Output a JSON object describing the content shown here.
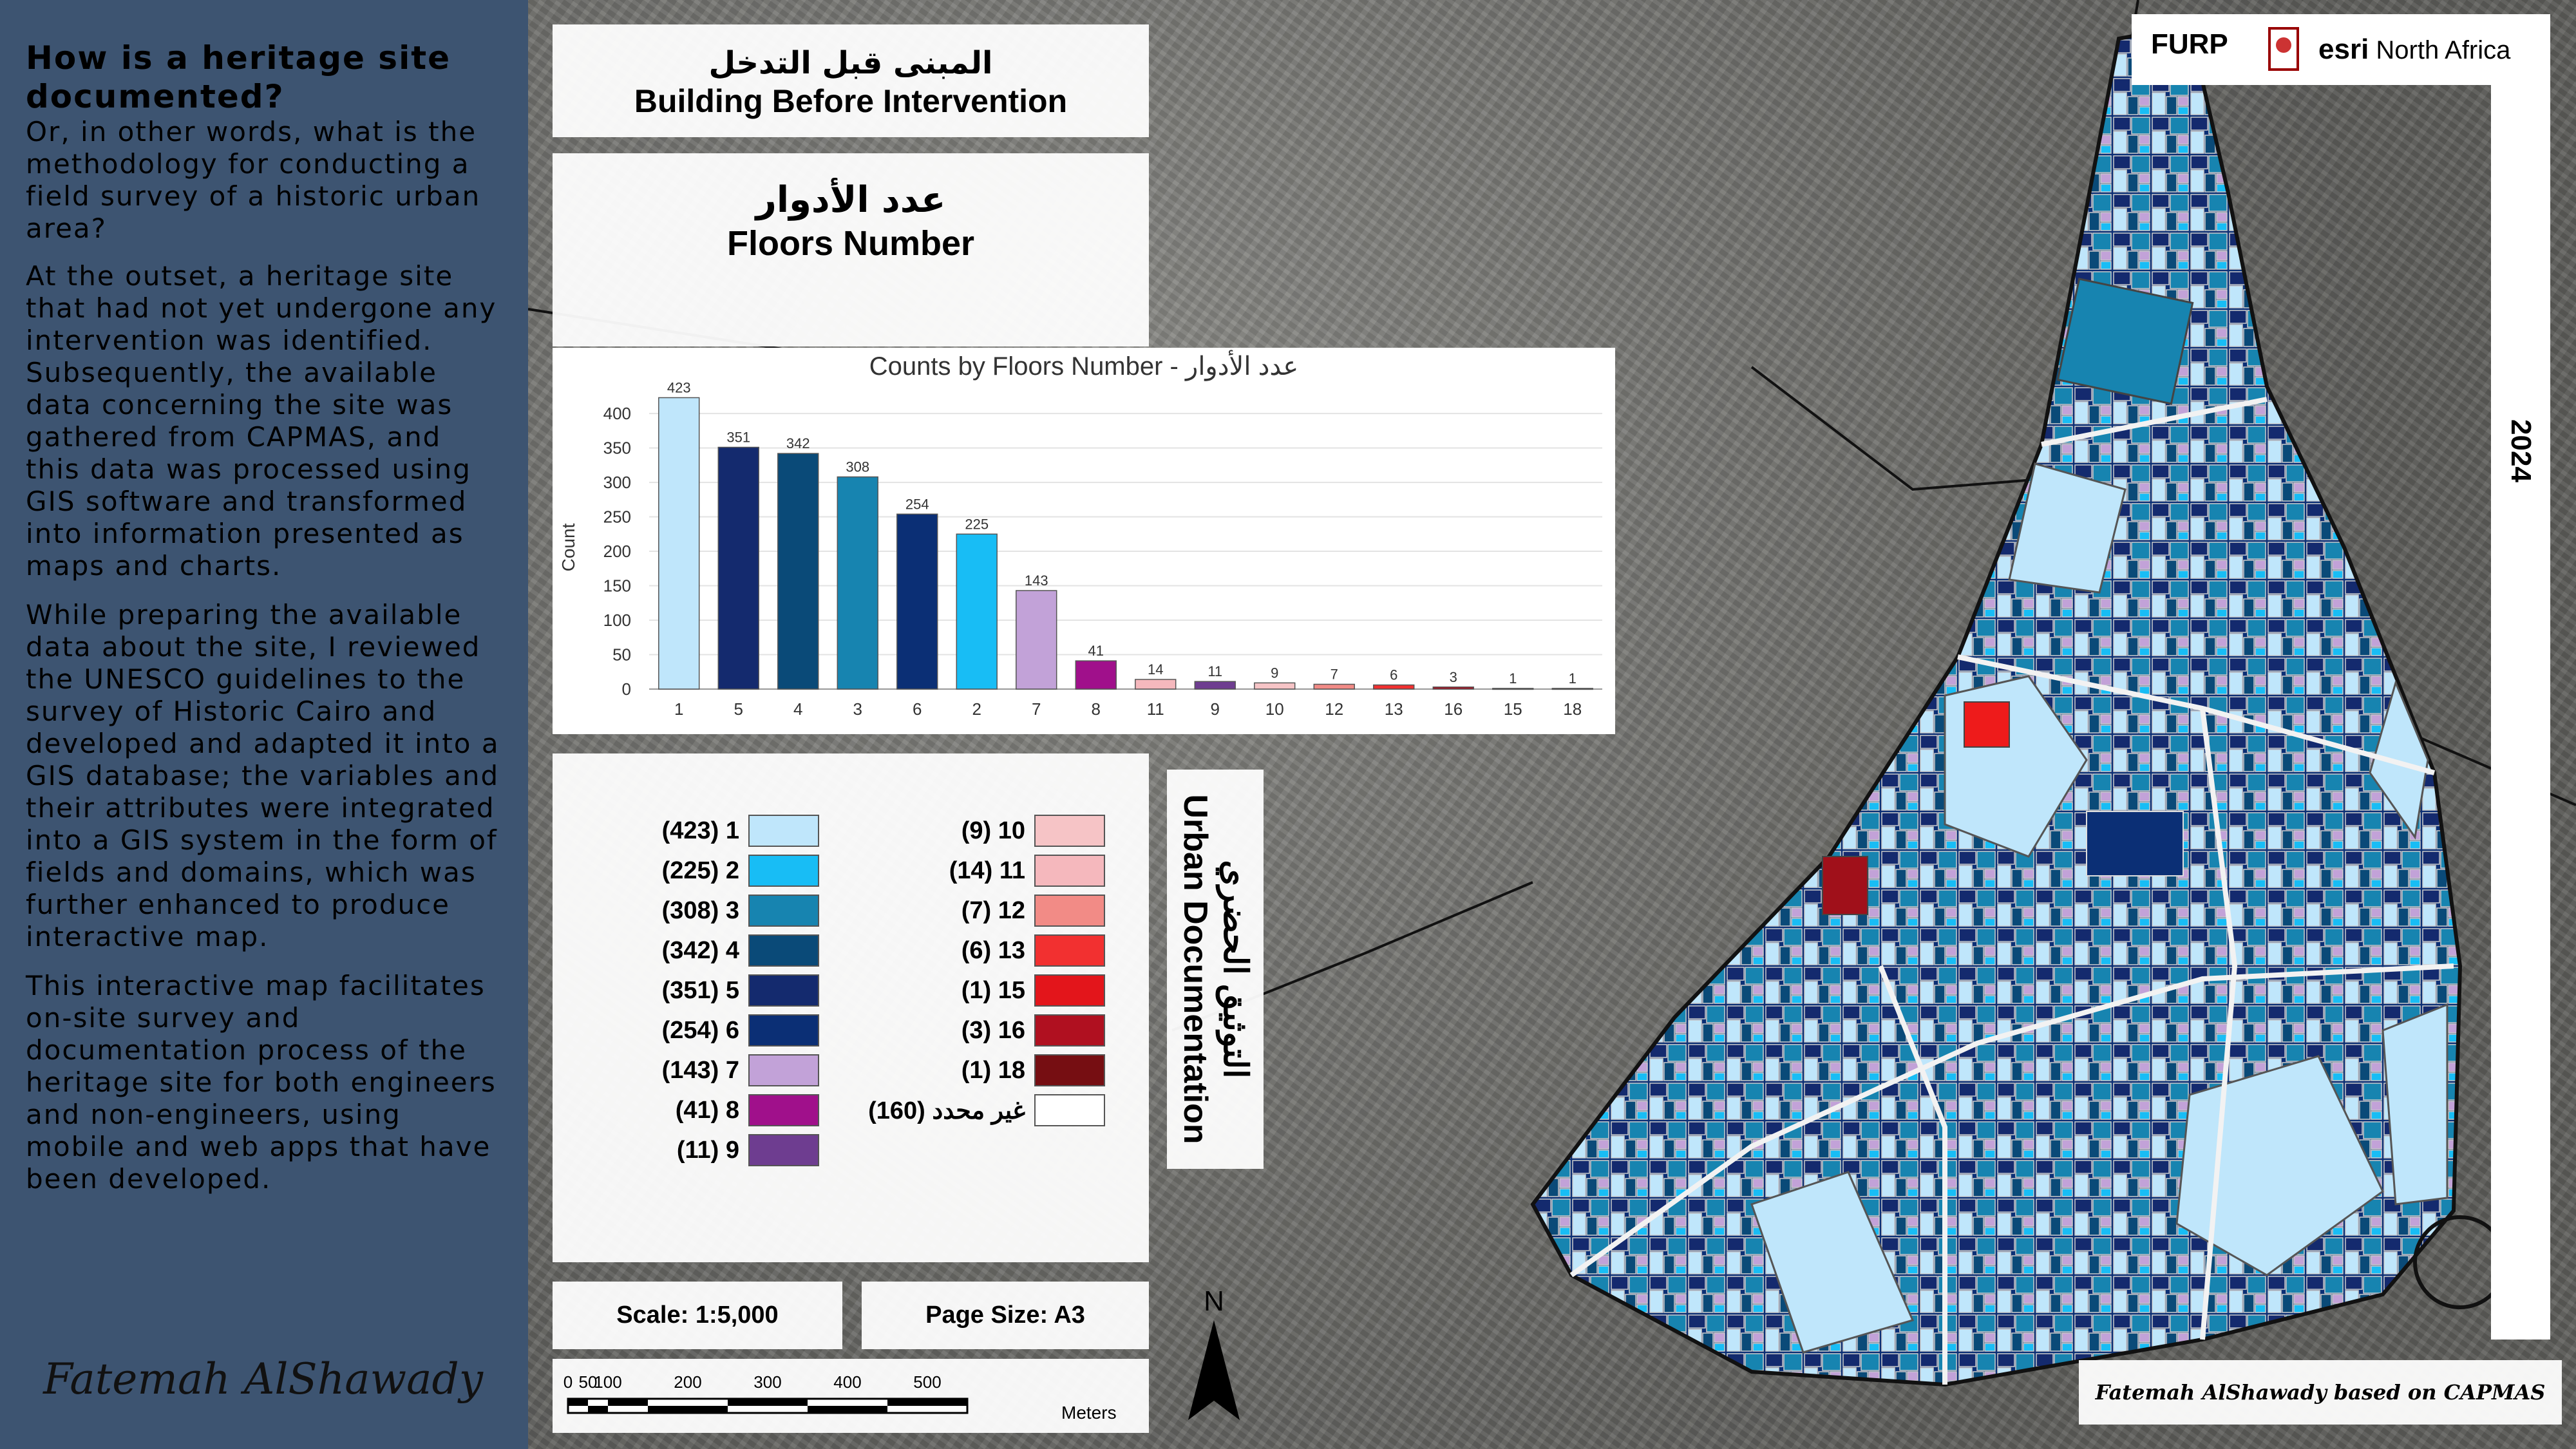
{
  "sidebar": {
    "heading": "How is a heritage site documented?",
    "subheading": "Or, in other words, what is the methodology for conducting a field survey of a historic urban area?",
    "paragraphs": [
      "At the outset, a heritage site that had not yet undergone any intervention was identified. Subsequently, the available data concerning the site was gathered from CAPMAS, and this data was processed using GIS software and transformed into information presented as maps and charts.",
      "While preparing the available data about the site, I reviewed the UNESCO guidelines to the survey of Historic Cairo and developed and adapted it into a GIS database; the variables and their attributes were integrated into a GIS system in the form of fields and domains, which was further enhanced to produce interactive map.",
      "This interactive map facilitates on-site survey and documentation process of the heritage site for both engineers and non-engineers, using mobile and web apps that have been developed."
    ],
    "signature": "Fatemah AlShawady"
  },
  "header": {
    "title_ar": "المبنى قبل التدخل",
    "title_en": "Building Before Intervention",
    "subtitle_ar": "عدد الأدوار",
    "subtitle_en": "Floors Number"
  },
  "chart_data": {
    "type": "bar",
    "title": "Counts by Floors Number - عدد الأدوار",
    "xlabel": "",
    "ylabel": "Count",
    "ylim": [
      0,
      430
    ],
    "yticks": [
      0,
      50,
      100,
      150,
      200,
      250,
      300,
      350,
      400
    ],
    "grid": true,
    "categories": [
      "1",
      "5",
      "4",
      "3",
      "6",
      "2",
      "7",
      "8",
      "11",
      "9",
      "10",
      "12",
      "13",
      "16",
      "15",
      "18"
    ],
    "values": [
      423,
      351,
      342,
      308,
      254,
      225,
      143,
      41,
      14,
      11,
      9,
      7,
      6,
      3,
      1,
      1
    ],
    "colors": [
      "#bfe6fb",
      "#142a6e",
      "#0a4a78",
      "#1784b0",
      "#0b2f75",
      "#18bdf5",
      "#c2a2d8",
      "#a0108b",
      "#f5b8bd",
      "#6e3d90",
      "#f6c4c6",
      "#f28b86",
      "#f23030",
      "#b01020",
      "#e3151b",
      "#760e12"
    ]
  },
  "legend": {
    "left": [
      {
        "label": "(423) 1",
        "color": "#bfe6fb"
      },
      {
        "label": "(225) 2",
        "color": "#18bdf5"
      },
      {
        "label": "(308) 3",
        "color": "#1784b0"
      },
      {
        "label": "(342) 4",
        "color": "#0a4a78"
      },
      {
        "label": "(351) 5",
        "color": "#142a6e"
      },
      {
        "label": "(254) 6",
        "color": "#0b2f75"
      },
      {
        "label": "(143) 7",
        "color": "#c2a2d8"
      },
      {
        "label": "(41) 8",
        "color": "#a0108b"
      },
      {
        "label": "(11) 9",
        "color": "#6e3d90"
      }
    ],
    "right": [
      {
        "label": "(9) 10",
        "color": "#f6c4c6"
      },
      {
        "label": "(14) 11",
        "color": "#f5b8bd"
      },
      {
        "label": "(7) 12",
        "color": "#f28b86"
      },
      {
        "label": "(6) 13",
        "color": "#f23030"
      },
      {
        "label": "(1) 15",
        "color": "#e3151b"
      },
      {
        "label": "(3) 16",
        "color": "#b01020"
      },
      {
        "label": "(1) 18",
        "color": "#760e12"
      },
      {
        "label": "غير محدد (160)",
        "color": "#ffffff"
      }
    ]
  },
  "urban": {
    "line1_ar": "التوثيق الحضري",
    "line2_en": "Urban Documentation"
  },
  "footer": {
    "scale": "Scale: 1:5,000",
    "page_size": "Page Size: A3",
    "scalebar_ticks": [
      "0",
      "50",
      "100",
      "200",
      "300",
      "400",
      "500"
    ],
    "scalebar_unit": "Meters",
    "north": "N",
    "credit": "Fatemah AlShawady based on CAPMAS"
  },
  "logos": {
    "furp": "FURP",
    "esri": "esri",
    "esri_region": "North Africa"
  },
  "year": "2024"
}
